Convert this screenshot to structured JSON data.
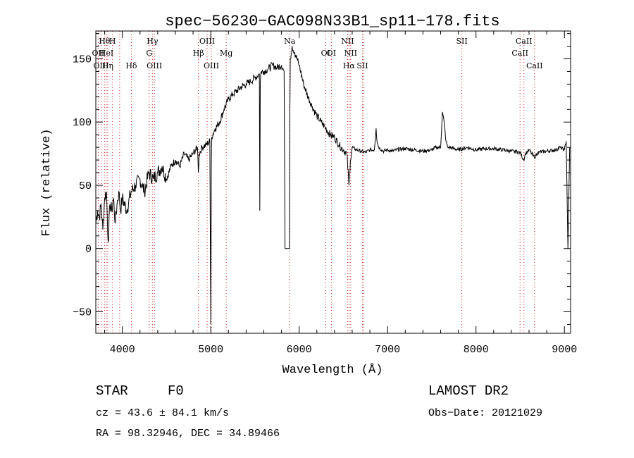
{
  "chart_data": {
    "type": "line",
    "title": "spec−56230−GAC098N33B1_sp11−178.fits",
    "xlabel": "Wavelength (Å)",
    "ylabel": "Flux (relative)",
    "xlim": [
      3700,
      9070
    ],
    "ylim": [
      -67,
      172
    ],
    "xticks": [
      4000,
      5000,
      6000,
      7000,
      8000,
      9000
    ],
    "yticks": [
      -50,
      0,
      50,
      100,
      150
    ],
    "xtick_labels": [
      "4000",
      "5000",
      "6000",
      "7000",
      "8000",
      "9000"
    ],
    "ytick_labels": [
      "−50",
      "0",
      "50",
      "100",
      "150"
    ],
    "series": [
      {
        "x": [
          3700,
          3720,
          3740,
          3760,
          3780,
          3800,
          3820,
          3840,
          3860,
          3880,
          3900,
          3920,
          3940,
          3960,
          3980,
          4000,
          4050,
          4100,
          4150,
          4200,
          4250,
          4300,
          4350,
          4400,
          4450,
          4500,
          4550,
          4600,
          4650,
          4700,
          4750,
          4800,
          4850,
          4860,
          4870,
          4900,
          4950,
          4990,
          5000,
          5006,
          5010,
          5050,
          5100,
          5150,
          5200,
          5250,
          5300,
          5350,
          5400,
          5450,
          5500,
          5550,
          5555,
          5560,
          5565,
          5570,
          5600,
          5650,
          5700,
          5750,
          5800,
          5830,
          5840,
          5850,
          5860,
          5870,
          5880,
          5890,
          5895,
          5900,
          5920,
          5950,
          6000,
          6050,
          6100,
          6150,
          6200,
          6250,
          6300,
          6350,
          6400,
          6450,
          6500,
          6540,
          6563,
          6580,
          6600,
          6650,
          6700,
          6750,
          6800,
          6850,
          6870,
          6880,
          6900,
          6950,
          7000,
          7050,
          7100,
          7200,
          7300,
          7400,
          7500,
          7550,
          7600,
          7620,
          7640,
          7660,
          7680,
          7700,
          7750,
          7800,
          7900,
          8000,
          8100,
          8200,
          8300,
          8400,
          8500,
          8540,
          8560,
          8600,
          8660,
          8700,
          8800,
          8900,
          8950,
          9000,
          9020,
          9040,
          9060
        ],
        "y": [
          20,
          30,
          25,
          35,
          15,
          40,
          45,
          5,
          35,
          30,
          40,
          20,
          35,
          45,
          30,
          40,
          30,
          45,
          50,
          55,
          45,
          60,
          55,
          60,
          65,
          55,
          65,
          70,
          65,
          75,
          70,
          75,
          80,
          60,
          75,
          80,
          82,
          85,
          -60,
          60,
          88,
          95,
          100,
          110,
          118,
          122,
          125,
          128,
          130,
          132,
          135,
          138,
          30,
          130,
          138,
          140,
          140,
          142,
          145,
          143,
          145,
          140,
          0,
          0,
          0,
          0,
          0,
          0,
          110,
          150,
          160,
          155,
          145,
          130,
          120,
          112,
          105,
          100,
          95,
          90,
          88,
          82,
          78,
          75,
          50,
          70,
          80,
          78,
          77,
          76,
          78,
          78,
          95,
          85,
          80,
          77,
          78,
          77,
          78,
          79,
          78,
          77,
          78,
          80,
          80,
          108,
          100,
          85,
          80,
          80,
          79,
          78,
          80,
          78,
          79,
          79,
          78,
          77,
          76,
          70,
          75,
          78,
          72,
          76,
          77,
          78,
          80,
          78,
          85,
          0,
          80
        ]
      }
    ],
    "line_labels": [
      {
        "text": "Hθ",
        "x": 3798
      },
      {
        "text": "H",
        "x": 3889
      },
      {
        "text": "OII",
        "x": 3727
      },
      {
        "text": "HeI",
        "x": 3820
      },
      {
        "text": "OIII",
        "x": 3760
      },
      {
        "text": "Hη",
        "x": 3835
      },
      {
        "text": "Hδ",
        "x": 4102
      },
      {
        "text": "Hγ",
        "x": 4340
      },
      {
        "text": "G",
        "x": 4304
      },
      {
        "text": "OIII",
        "x": 4363
      },
      {
        "text": "OIII",
        "x": 4959
      },
      {
        "text": "Hβ",
        "x": 4861
      },
      {
        "text": "Mg",
        "x": 5175
      },
      {
        "text": "OIII",
        "x": 5007
      },
      {
        "text": "Na",
        "x": 5893
      },
      {
        "text": "OI",
        "x": 6300
      },
      {
        "text": "OI",
        "x": 6364
      },
      {
        "text": "NII",
        "x": 6548
      },
      {
        "text": "NII",
        "x": 6583
      },
      {
        "text": "Hα",
        "x": 6563
      },
      {
        "text": "SII",
        "x": 6716
      },
      {
        "text": "SII",
        "x": 7840
      },
      {
        "text": "CaII",
        "x": 8542
      },
      {
        "text": "CaII",
        "x": 8498
      },
      {
        "text": "CaII",
        "x": 8662
      }
    ],
    "line_marker_x": [
      3727,
      3760,
      3798,
      3820,
      3835,
      3889,
      3970,
      4102,
      4304,
      4340,
      4363,
      4861,
      4959,
      5007,
      5175,
      5893,
      6300,
      6364,
      6548,
      6563,
      6583,
      6716,
      6731,
      7840,
      8498,
      8542,
      8662
    ],
    "line_marker_color": "#d02020"
  },
  "footer": {
    "object_class": "STAR",
    "subclass": "F0",
    "survey": "LAMOST DR2",
    "cz": "cz = 43.6 ± 84.1 km/s",
    "obs_date": "Obs−Date: 20121029",
    "coords": "RA =  98.32946, DEC =  34.89466"
  }
}
